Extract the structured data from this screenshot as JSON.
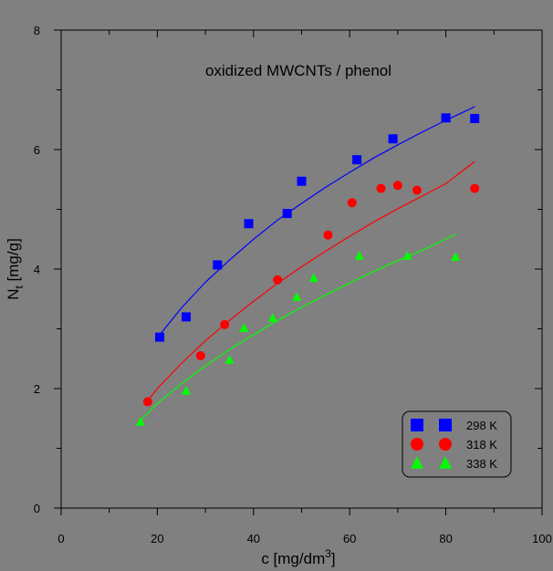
{
  "chart_data": {
    "type": "scatter",
    "title": "oxidized MWCNTs / phenol",
    "xlabel": {
      "main": "c [mg/dm",
      "sup": "3",
      "end": "]"
    },
    "ylabel": {
      "main": "N",
      "sub": "t",
      "end": " [mg/g]"
    },
    "xlim": [
      0,
      100
    ],
    "ylim": [
      0,
      8
    ],
    "xticks": [
      0,
      20,
      40,
      60,
      80,
      100
    ],
    "yticks": [
      0,
      2,
      4,
      6,
      8
    ],
    "grid": false,
    "legend_position": "bottom-right",
    "series": [
      {
        "name": "298 K",
        "color": "#0000ff",
        "marker": "square",
        "points": [
          [
            20.5,
            2.86
          ],
          [
            26,
            3.2
          ],
          [
            32.5,
            4.07
          ],
          [
            39,
            4.76
          ],
          [
            47,
            4.93
          ],
          [
            50,
            5.47
          ],
          [
            61.5,
            5.83
          ],
          [
            69,
            6.18
          ],
          [
            80,
            6.53
          ],
          [
            86,
            6.52
          ]
        ],
        "fit": [
          [
            20.5,
            2.9
          ],
          [
            25,
            3.35
          ],
          [
            30,
            3.78
          ],
          [
            35,
            4.15
          ],
          [
            40,
            4.5
          ],
          [
            45,
            4.82
          ],
          [
            50,
            5.1
          ],
          [
            55,
            5.37
          ],
          [
            60,
            5.62
          ],
          [
            65,
            5.86
          ],
          [
            70,
            6.08
          ],
          [
            75,
            6.29
          ],
          [
            80,
            6.49
          ],
          [
            85,
            6.68
          ],
          [
            86,
            6.72
          ]
        ]
      },
      {
        "name": "318 K",
        "color": "#ff0000",
        "marker": "circle",
        "points": [
          [
            18,
            1.78
          ],
          [
            29,
            2.55
          ],
          [
            34,
            3.07
          ],
          [
            45,
            3.82
          ],
          [
            55.5,
            4.57
          ],
          [
            60.5,
            5.11
          ],
          [
            66.5,
            5.35
          ],
          [
            70,
            5.4
          ],
          [
            74,
            5.32
          ],
          [
            86,
            5.35
          ]
        ],
        "fit": [
          [
            18,
            1.8
          ],
          [
            20,
            2.0
          ],
          [
            25,
            2.42
          ],
          [
            30,
            2.8
          ],
          [
            35,
            3.14
          ],
          [
            40,
            3.46
          ],
          [
            45,
            3.76
          ],
          [
            50,
            4.04
          ],
          [
            55,
            4.3
          ],
          [
            60,
            4.55
          ],
          [
            65,
            4.79
          ],
          [
            70,
            5.01
          ],
          [
            75,
            5.22
          ],
          [
            80,
            5.43
          ],
          [
            86,
            5.8
          ]
        ]
      },
      {
        "name": "338 K",
        "color": "#00ff00",
        "marker": "triangle",
        "points": [
          [
            16.5,
            1.44
          ],
          [
            26,
            1.96
          ],
          [
            35,
            2.48
          ],
          [
            38,
            3.01
          ],
          [
            44,
            3.18
          ],
          [
            49,
            3.53
          ],
          [
            52.5,
            3.85
          ],
          [
            62,
            4.22
          ],
          [
            72,
            4.22
          ],
          [
            82,
            4.2
          ]
        ],
        "fit": [
          [
            16.5,
            1.47
          ],
          [
            20,
            1.75
          ],
          [
            25,
            2.08
          ],
          [
            30,
            2.38
          ],
          [
            35,
            2.65
          ],
          [
            40,
            2.9
          ],
          [
            45,
            3.14
          ],
          [
            50,
            3.36
          ],
          [
            55,
            3.57
          ],
          [
            60,
            3.77
          ],
          [
            65,
            3.96
          ],
          [
            70,
            4.14
          ],
          [
            75,
            4.31
          ],
          [
            82,
            4.58
          ]
        ]
      }
    ]
  }
}
